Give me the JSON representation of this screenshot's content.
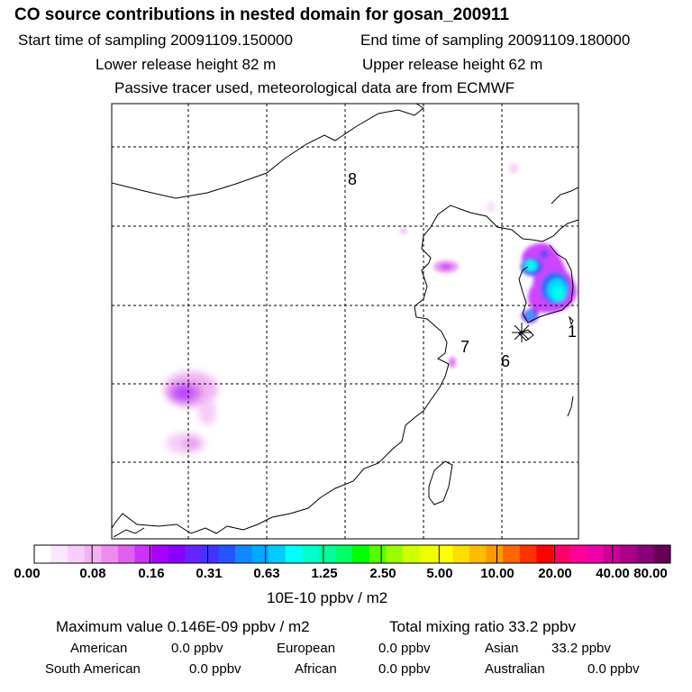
{
  "header": {
    "title": "CO  source contributions in nested domain for gosan_200911",
    "start_time": "Start time of sampling 20091109.150000",
    "end_time": "End time of sampling 20091109.180000",
    "lower_height": "Lower release height   82 m",
    "upper_height": "Upper release height   62 m",
    "tracer_note": "Passive tracer used, meteorological data are from ECMWF"
  },
  "chart_data": {
    "type": "heatmap",
    "title": "CO  source contributions in nested domain for gosan_200911",
    "region_labels": [
      {
        "text": "8"
      },
      {
        "text": "7"
      },
      {
        "text": "6"
      },
      {
        "text": "1"
      }
    ],
    "receptor_marker": "gosan",
    "colorbar": {
      "unit": "10E-10 ppbv / m2",
      "tick_labels": [
        "0.00",
        "0.08",
        "0.16",
        "0.31",
        "0.63",
        "1.25",
        "2.50",
        "5.00",
        "10.00",
        "20.00",
        "40.00",
        "80.00"
      ],
      "tick_values": [
        0.0,
        0.08,
        0.16,
        0.31,
        0.63,
        1.25,
        2.5,
        5.0,
        10.0,
        20.0,
        40.0,
        80.0
      ],
      "colors": [
        "#ffffff",
        "#fde6fd",
        "#f9ccf9",
        "#f4b0f4",
        "#ee8cee",
        "#e060f0",
        "#cc33ff",
        "#aa00ff",
        "#8800ff",
        "#6622ff",
        "#4433ff",
        "#2255ff",
        "#1188ff",
        "#00aaff",
        "#00ccff",
        "#00ffff",
        "#00ffcc",
        "#00ff99",
        "#00ff66",
        "#00ff00",
        "#55ff00",
        "#99ff00",
        "#ccff00",
        "#eeff00",
        "#ffff00",
        "#ffdd00",
        "#ffbb00",
        "#ff9900",
        "#ff6600",
        "#ff3300",
        "#ff0000",
        "#ff0066",
        "#ff0099",
        "#ee00aa",
        "#cc0099",
        "#aa0088",
        "#880077",
        "#660055"
      ]
    },
    "blobs": [
      {
        "region": "central-china",
        "value": 0.16
      },
      {
        "region": "central-china-south",
        "value": 0.08
      },
      {
        "region": "beijing-tianjin",
        "value": 0.12
      },
      {
        "region": "korea",
        "value": 1.46
      },
      {
        "region": "shanghai",
        "value": 0.1
      }
    ]
  },
  "stats": {
    "max_value": "Maximum value  0.146E-09 ppbv / m2",
    "total_mixing": "Total mixing ratio       33.2 ppbv",
    "american": "American",
    "american_val": "0.0 ppbv",
    "european": "European",
    "european_val": "0.0 ppbv",
    "asian": "Asian",
    "asian_val": "33.2 ppbv",
    "south_american": "South American",
    "south_american_val": "0.0 ppbv",
    "african": "African",
    "african_val": "0.0 ppbv",
    "australian": "Australian",
    "australian_val": "0.0 ppbv"
  }
}
